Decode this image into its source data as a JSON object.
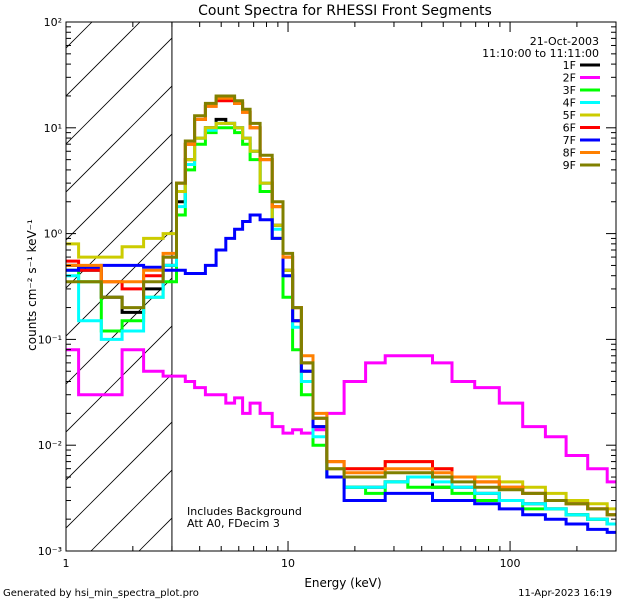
{
  "chart_data": {
    "type": "line",
    "title": "Count Spectra for RHESSI Front Segments",
    "xlabel": "Energy (keV)",
    "ylabel": "counts cm⁻² s⁻¹ keV⁻¹",
    "xscale": "log",
    "yscale": "log",
    "xlim": [
      1,
      300
    ],
    "ylim": [
      0.001,
      100
    ],
    "x_ticks": [
      {
        "value": 1,
        "label": "1"
      },
      {
        "value": 10,
        "label": "10"
      },
      {
        "value": 100,
        "label": "100"
      }
    ],
    "y_ticks": [
      {
        "value": 0.001,
        "label": "10⁻³"
      },
      {
        "value": 0.01,
        "label": "10⁻²"
      },
      {
        "value": 0.1,
        "label": "10⁻¹"
      },
      {
        "value": 1,
        "label": "10⁰"
      },
      {
        "value": 10,
        "label": "10¹"
      },
      {
        "value": 100,
        "label": "10²"
      }
    ],
    "shaded_region": {
      "from": 1,
      "to": 3,
      "pattern": "diagonal-hatch"
    },
    "legend_header": [
      "21-Oct-2003",
      "11:10:00 to 11:11:00"
    ],
    "legend_position": "top-right",
    "annotations": [
      "Includes Background",
      "Att A0, FDecim 3"
    ],
    "x": [
      1,
      1.3,
      1.6,
      2.0,
      2.5,
      3.0,
      3.3,
      3.6,
      4.0,
      4.5,
      5.0,
      5.5,
      6.0,
      6.5,
      7.0,
      8.0,
      9.0,
      10,
      11,
      12,
      14,
      16,
      20,
      25,
      30,
      40,
      50,
      60,
      80,
      100,
      130,
      160,
      200,
      250,
      300
    ],
    "series": [
      {
        "name": "1F",
        "color": "#000000",
        "values": [
          0.5,
          0.45,
          0.25,
          0.18,
          0.3,
          0.5,
          2,
          5,
          8,
          10,
          12,
          11,
          10,
          8,
          6,
          3,
          1.2,
          0.45,
          0.15,
          0.05,
          0.015,
          0.005,
          0.004,
          0.004,
          0.0045,
          0.005,
          0.004,
          0.004,
          0.0035,
          0.003,
          0.0028,
          0.0025,
          0.0022,
          0.002,
          0.0018
        ]
      },
      {
        "name": "2F",
        "color": "#ff00ff",
        "values": [
          0.08,
          0.03,
          0.03,
          0.08,
          0.05,
          0.045,
          0.045,
          0.04,
          0.035,
          0.03,
          0.03,
          0.025,
          0.028,
          0.02,
          0.025,
          0.02,
          0.015,
          0.013,
          0.014,
          0.013,
          0.014,
          0.02,
          0.04,
          0.06,
          0.07,
          0.07,
          0.06,
          0.04,
          0.035,
          0.025,
          0.015,
          0.012,
          0.008,
          0.006,
          0.0045
        ]
      },
      {
        "name": "3F",
        "color": "#00ff00",
        "values": [
          0.45,
          0.35,
          0.12,
          0.15,
          0.25,
          0.35,
          1.5,
          4,
          7,
          9,
          10,
          10,
          9,
          7,
          5,
          2.5,
          0.9,
          0.25,
          0.08,
          0.03,
          0.01,
          0.005,
          0.004,
          0.0035,
          0.0045,
          0.004,
          0.004,
          0.0035,
          0.003,
          0.003,
          0.0025,
          0.0025,
          0.0022,
          0.002,
          0.0018
        ]
      },
      {
        "name": "4F",
        "color": "#00ffff",
        "values": [
          0.4,
          0.15,
          0.1,
          0.12,
          0.25,
          0.5,
          1.8,
          4.5,
          8,
          9.5,
          11,
          11,
          10,
          8,
          6,
          3,
          1.1,
          0.4,
          0.13,
          0.04,
          0.012,
          0.005,
          0.004,
          0.004,
          0.0045,
          0.005,
          0.0045,
          0.004,
          0.0035,
          0.003,
          0.0028,
          0.0025,
          0.0022,
          0.002,
          0.0018
        ]
      },
      {
        "name": "5F",
        "color": "#cccc00",
        "values": [
          0.8,
          0.6,
          0.6,
          0.75,
          0.9,
          1.0,
          2.5,
          5,
          8,
          10,
          11,
          11,
          10,
          8,
          6,
          3,
          1.2,
          0.45,
          0.15,
          0.05,
          0.015,
          0.006,
          0.006,
          0.006,
          0.007,
          0.007,
          0.006,
          0.005,
          0.005,
          0.0045,
          0.004,
          0.0035,
          0.003,
          0.0028,
          0.0025
        ]
      },
      {
        "name": "6F",
        "color": "#ff0000",
        "values": [
          0.55,
          0.45,
          0.35,
          0.3,
          0.4,
          0.6,
          3,
          7,
          12,
          16,
          18,
          18,
          17,
          14,
          10,
          5,
          1.8,
          0.6,
          0.2,
          0.06,
          0.018,
          0.007,
          0.006,
          0.006,
          0.007,
          0.007,
          0.006,
          0.005,
          0.0045,
          0.004,
          0.0035,
          0.003,
          0.0028,
          0.0025,
          0.0022
        ]
      },
      {
        "name": "7F",
        "color": "#0000ff",
        "values": [
          0.45,
          0.48,
          0.5,
          0.5,
          0.48,
          0.45,
          0.45,
          0.42,
          0.42,
          0.5,
          0.7,
          0.9,
          1.1,
          1.3,
          1.5,
          1.35,
          0.9,
          0.4,
          0.15,
          0.05,
          0.015,
          0.005,
          0.003,
          0.003,
          0.0035,
          0.0035,
          0.003,
          0.003,
          0.0028,
          0.0025,
          0.0022,
          0.002,
          0.0018,
          0.0016,
          0.0015
        ]
      },
      {
        "name": "8F",
        "color": "#ff8000",
        "values": [
          0.5,
          0.5,
          0.35,
          0.35,
          0.45,
          0.65,
          3,
          7,
          12,
          16,
          19,
          19,
          17,
          14,
          10,
          5,
          1.8,
          0.6,
          0.2,
          0.07,
          0.02,
          0.007,
          0.0055,
          0.0055,
          0.006,
          0.006,
          0.0055,
          0.005,
          0.0045,
          0.004,
          0.0035,
          0.003,
          0.0028,
          0.0025,
          0.0022
        ]
      },
      {
        "name": "9F",
        "color": "#808000",
        "values": [
          0.35,
          0.35,
          0.25,
          0.2,
          0.35,
          0.6,
          3,
          7.5,
          13,
          17,
          20,
          20,
          18,
          15,
          11,
          5.5,
          2,
          0.65,
          0.2,
          0.06,
          0.018,
          0.006,
          0.005,
          0.005,
          0.0055,
          0.0055,
          0.005,
          0.0045,
          0.004,
          0.0038,
          0.0035,
          0.003,
          0.0028,
          0.0025,
          0.0022
        ]
      }
    ]
  },
  "footer": {
    "left": "Generated by hsi_min_spectra_plot.pro",
    "right": "11-Apr-2023 16:19"
  }
}
